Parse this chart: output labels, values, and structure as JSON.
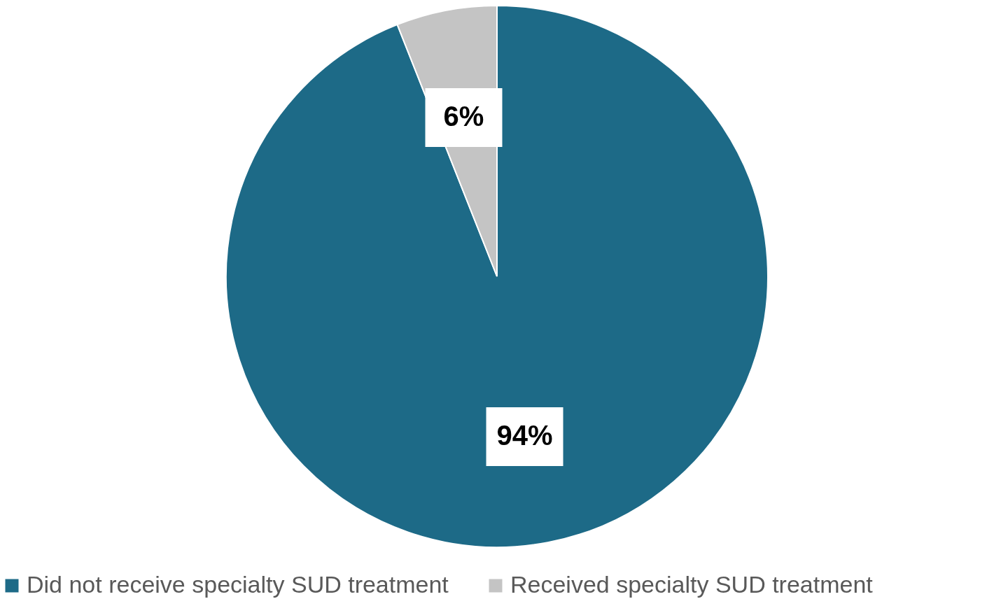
{
  "chart_data": {
    "type": "pie",
    "categories": [
      "Did not receive specialty SUD treatment",
      "Received specialty SUD treatment"
    ],
    "values": [
      94,
      6
    ],
    "colors": [
      "#1d6a87",
      "#c4c4c4"
    ],
    "value_labels": [
      "94%",
      "6%"
    ],
    "legend": "bottom"
  }
}
